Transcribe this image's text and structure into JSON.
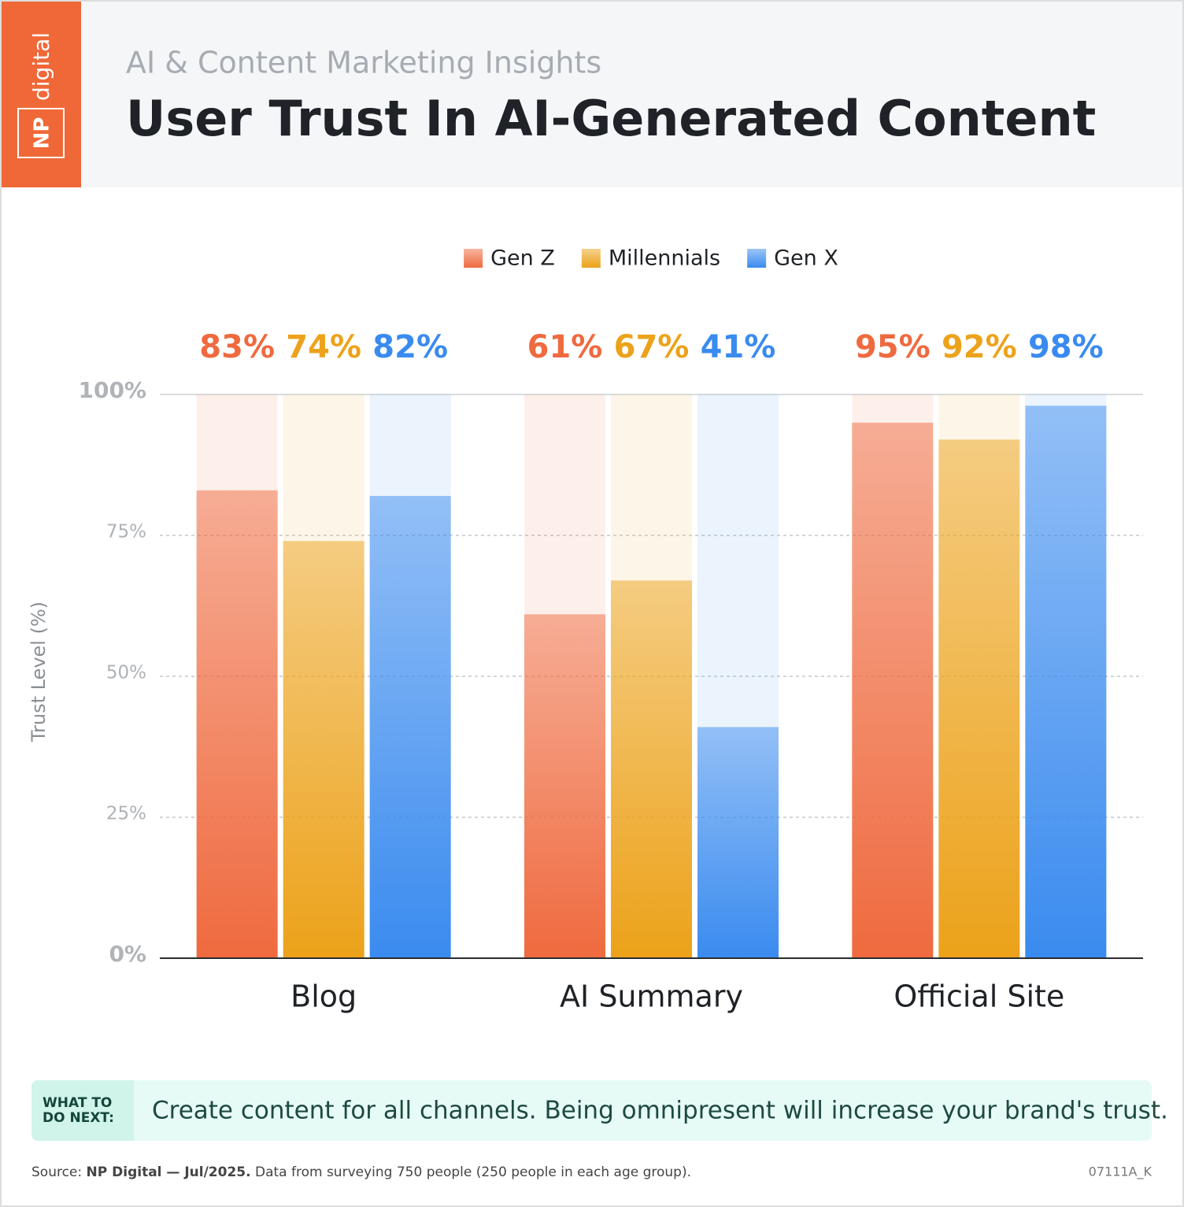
{
  "header": {
    "logo_np": "NP",
    "logo_digital": "digital",
    "subtitle": "AI & Content Marketing Insights",
    "title": "User Trust In AI-Generated Content"
  },
  "chart_data": {
    "type": "bar",
    "categories": [
      "Blog",
      "AI Summary",
      "Official Site"
    ],
    "series": [
      {
        "name": "Gen Z",
        "color": "#ef6a3f",
        "values": [
          83,
          61,
          95
        ],
        "value_labels": [
          "83%",
          "61%",
          "95%"
        ]
      },
      {
        "name": "Millennials",
        "color": "#eca21a",
        "values": [
          74,
          67,
          92
        ],
        "value_labels": [
          "74%",
          "67%",
          "92%"
        ]
      },
      {
        "name": "Gen X",
        "color": "#3a8bef",
        "values": [
          82,
          41,
          98
        ],
        "value_labels": [
          "82%",
          "41%",
          "98%"
        ]
      }
    ],
    "y_label": "Trust Level (%)",
    "ylim": [
      0,
      100
    ],
    "yticks": [
      {
        "value": 0,
        "label": "0%"
      },
      {
        "value": 25,
        "label": "25%"
      },
      {
        "value": 50,
        "label": "50%"
      },
      {
        "value": 75,
        "label": "75%"
      },
      {
        "value": 100,
        "label": "100%"
      }
    ],
    "grid": true,
    "legend": "top"
  },
  "callout": {
    "label": "WHAT TO DO NEXT:",
    "text": "Create content for all channels. Being omnipresent will increase your brand's trust."
  },
  "footer": {
    "source_label": "Source:",
    "source_name": "NP Digital — Jul/2025.",
    "source_text": "Data from surveying 750 people (250 people in each age group).",
    "code": "07111A_K"
  }
}
